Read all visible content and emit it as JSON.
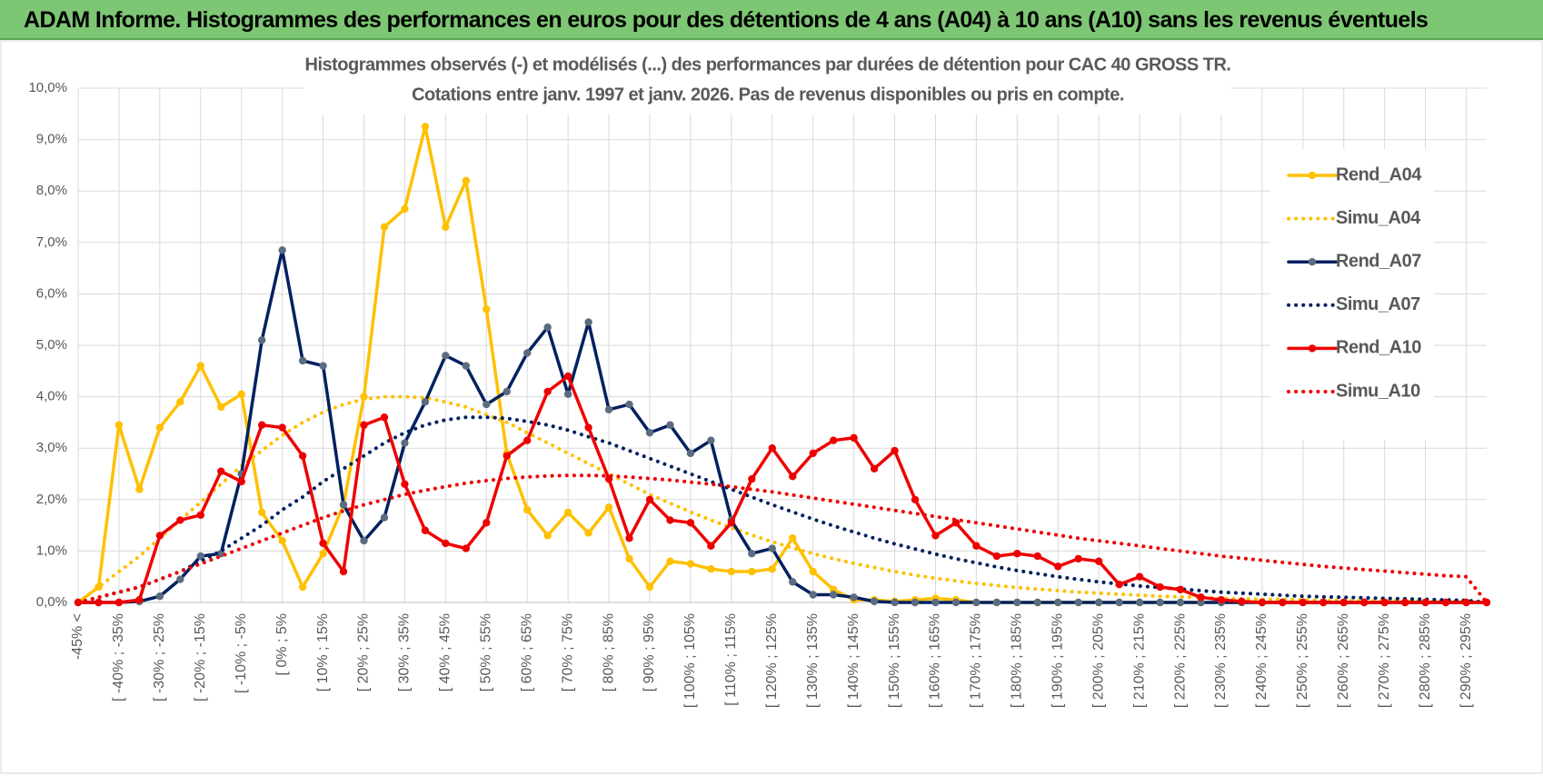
{
  "header": "ADAM Informe. Histogrammes des performances en euros pour des détentions de 4 ans (A04) à 10 ans (A10) sans les revenus éventuels",
  "chart_data": {
    "type": "line",
    "title": "Histogrammes observés (-) et modélisés (...) des performances par durées de détention pour CAC 40 GROSS TR.",
    "subtitle": "Cotations entre janv. 1997 et janv. 2026. Pas de revenus disponibles ou pris en compte.",
    "categories": [
      "-45% <",
      null,
      "[ -40% ; -35%",
      null,
      "[ -30% ; -25%",
      null,
      "[ -20% ; -15%",
      null,
      "[ -10% ; -5%",
      null,
      "[ 0% ; 5%",
      null,
      "[ 10% ; 15%",
      null,
      "[ 20% ; 25%",
      null,
      "[ 30% ; 35%",
      null,
      "[ 40% ; 45%",
      null,
      "[ 50% ; 55%",
      null,
      "[ 60% ; 65%",
      null,
      "[ 70% ; 75%",
      null,
      "[ 80% ; 85%",
      null,
      "[ 90% ; 95%",
      null,
      "[ 100% ; 105%",
      null,
      "[ 110% ; 115%",
      null,
      "[ 120% ; 125%",
      null,
      "[ 130% ; 135%",
      null,
      "[ 140% ; 145%",
      null,
      "[ 150% ; 155%",
      null,
      "[ 160% ; 165%",
      null,
      "[ 170% ; 175%",
      null,
      "[ 180% ; 185%",
      null,
      "[ 190% ; 195%",
      null,
      "[ 200% ; 205%",
      null,
      "[ 210% ; 215%",
      null,
      "[ 220% ; 225%",
      null,
      "[ 230% ; 235%",
      null,
      "[ 240% ; 245%",
      null,
      "[ 250% ; 255%",
      null,
      "[ 260% ; 265%",
      null,
      "[ 270% ; 275%",
      null,
      "[ 280% ; 285%",
      null,
      "[ 290% ; 295%",
      null
    ],
    "series": [
      {
        "name": "Rend_A04",
        "color": "#ffc000",
        "line_style": "solid",
        "markers": true,
        "values": [
          0,
          0.3,
          3.45,
          2.2,
          3.4,
          3.9,
          4.6,
          3.8,
          4.05,
          1.75,
          1.2,
          0.3,
          0.95,
          1.9,
          4.0,
          7.3,
          7.65,
          9.25,
          7.3,
          8.2,
          5.7,
          2.9,
          1.8,
          1.3,
          1.75,
          1.35,
          1.85,
          0.85,
          0.3,
          0.8,
          0.75,
          0.65,
          0.6,
          0.6,
          0.65,
          1.25,
          0.6,
          0.25,
          0.05,
          0.05,
          0.02,
          0.05,
          0.08,
          0.05,
          0,
          0,
          0,
          0,
          0,
          0,
          0,
          0,
          0,
          0,
          0,
          0,
          0,
          0,
          0,
          0,
          0,
          0,
          0,
          0,
          0,
          0,
          0,
          0,
          0,
          0
        ]
      },
      {
        "name": "Simu_A04",
        "color": "#ffc000",
        "line_style": "dotted",
        "markers": false,
        "values": [
          0,
          0.3,
          0.6,
          0.9,
          1.25,
          1.6,
          1.95,
          2.3,
          2.65,
          2.95,
          3.25,
          3.5,
          3.7,
          3.85,
          3.95,
          4.0,
          4.0,
          3.98,
          3.9,
          3.8,
          3.65,
          3.5,
          3.3,
          3.1,
          2.9,
          2.7,
          2.5,
          2.3,
          2.1,
          1.93,
          1.76,
          1.6,
          1.45,
          1.31,
          1.18,
          1.06,
          0.95,
          0.85,
          0.76,
          0.68,
          0.6,
          0.53,
          0.47,
          0.42,
          0.37,
          0.33,
          0.29,
          0.26,
          0.23,
          0.2,
          0.18,
          0.16,
          0.14,
          0.12,
          0.11,
          0.1,
          0.08,
          0.07,
          0.06,
          0.06,
          0.05,
          0.04,
          0.04,
          0.03,
          0.03,
          0.03,
          0.02,
          0.02,
          0.02,
          0
        ]
      },
      {
        "name": "Rend_A07",
        "color": "#002060",
        "marker_color": "#5b6b80",
        "line_style": "solid",
        "markers": true,
        "values": [
          0,
          0,
          0,
          0.02,
          0.12,
          0.45,
          0.9,
          0.95,
          2.5,
          5.1,
          6.85,
          4.7,
          4.6,
          1.9,
          1.2,
          1.65,
          3.1,
          3.9,
          4.8,
          4.6,
          3.85,
          4.1,
          4.85,
          5.35,
          4.05,
          5.45,
          3.75,
          3.85,
          3.3,
          3.45,
          2.9,
          3.15,
          1.6,
          0.95,
          1.05,
          0.4,
          0.15,
          0.15,
          0.1,
          0.02,
          0,
          0,
          0,
          0,
          0,
          0,
          0,
          0,
          0,
          0,
          0,
          0,
          0,
          0,
          0,
          0,
          0,
          0,
          0,
          0,
          0,
          0,
          0,
          0,
          0,
          0,
          0,
          0,
          0,
          0
        ]
      },
      {
        "name": "Simu_A07",
        "color": "#002060",
        "line_style": "dotted",
        "markers": false,
        "values": [
          0,
          0.1,
          0.2,
          0.3,
          0.45,
          0.6,
          0.8,
          1.0,
          1.25,
          1.5,
          1.8,
          2.05,
          2.35,
          2.6,
          2.85,
          3.1,
          3.3,
          3.45,
          3.55,
          3.6,
          3.6,
          3.58,
          3.52,
          3.45,
          3.35,
          3.22,
          3.1,
          2.95,
          2.8,
          2.65,
          2.5,
          2.35,
          2.2,
          2.05,
          1.9,
          1.76,
          1.62,
          1.49,
          1.37,
          1.25,
          1.14,
          1.04,
          0.94,
          0.85,
          0.77,
          0.69,
          0.62,
          0.56,
          0.5,
          0.45,
          0.4,
          0.36,
          0.32,
          0.29,
          0.26,
          0.23,
          0.2,
          0.18,
          0.16,
          0.14,
          0.12,
          0.11,
          0.1,
          0.09,
          0.08,
          0.07,
          0.06,
          0.05,
          0.04,
          0
        ]
      },
      {
        "name": "Rend_A10",
        "color": "#ee0000",
        "line_style": "solid",
        "markers": true,
        "values": [
          0,
          0,
          0,
          0.05,
          1.3,
          1.6,
          1.7,
          2.55,
          2.35,
          3.45,
          3.4,
          2.85,
          1.15,
          0.6,
          3.45,
          3.6,
          2.3,
          1.4,
          1.15,
          1.05,
          1.55,
          2.85,
          3.15,
          4.1,
          4.4,
          3.4,
          2.4,
          1.25,
          2.0,
          1.6,
          1.55,
          1.1,
          1.55,
          2.4,
          3.0,
          2.45,
          2.9,
          3.15,
          3.2,
          2.6,
          2.95,
          2.0,
          1.3,
          1.55,
          1.1,
          0.9,
          0.95,
          0.9,
          0.7,
          0.85,
          0.8,
          0.35,
          0.5,
          0.3,
          0.25,
          0.1,
          0.05,
          0.02,
          0,
          0,
          0,
          0,
          0,
          0,
          0,
          0,
          0,
          0,
          0,
          0
        ]
      },
      {
        "name": "Simu_A10",
        "color": "#ee0000",
        "line_style": "dotted",
        "markers": false,
        "values": [
          0,
          0.1,
          0.2,
          0.3,
          0.45,
          0.6,
          0.75,
          0.9,
          1.05,
          1.2,
          1.35,
          1.5,
          1.65,
          1.78,
          1.9,
          2.0,
          2.1,
          2.18,
          2.25,
          2.32,
          2.37,
          2.41,
          2.44,
          2.46,
          2.47,
          2.47,
          2.46,
          2.44,
          2.41,
          2.38,
          2.34,
          2.3,
          2.25,
          2.2,
          2.15,
          2.09,
          2.03,
          1.97,
          1.91,
          1.85,
          1.79,
          1.73,
          1.67,
          1.61,
          1.55,
          1.49,
          1.43,
          1.37,
          1.31,
          1.25,
          1.2,
          1.15,
          1.1,
          1.05,
          1.0,
          0.95,
          0.9,
          0.86,
          0.82,
          0.78,
          0.74,
          0.7,
          0.67,
          0.64,
          0.61,
          0.58,
          0.55,
          0.52,
          0.5,
          0
        ]
      }
    ],
    "ylim": [
      0,
      10
    ],
    "yticks": [
      {
        "value": 0,
        "label": "0,0%"
      },
      {
        "value": 1,
        "label": "1,0%"
      },
      {
        "value": 2,
        "label": "2,0%"
      },
      {
        "value": 3,
        "label": "3,0%"
      },
      {
        "value": 4,
        "label": "4,0%"
      },
      {
        "value": 5,
        "label": "5,0%"
      },
      {
        "value": 6,
        "label": "6,0%"
      },
      {
        "value": 7,
        "label": "7,0%"
      },
      {
        "value": 8,
        "label": "8,0%"
      },
      {
        "value": 9,
        "label": "9,0%"
      },
      {
        "value": 10,
        "label": "10,0%"
      }
    ],
    "grid": true,
    "legend": "right"
  }
}
